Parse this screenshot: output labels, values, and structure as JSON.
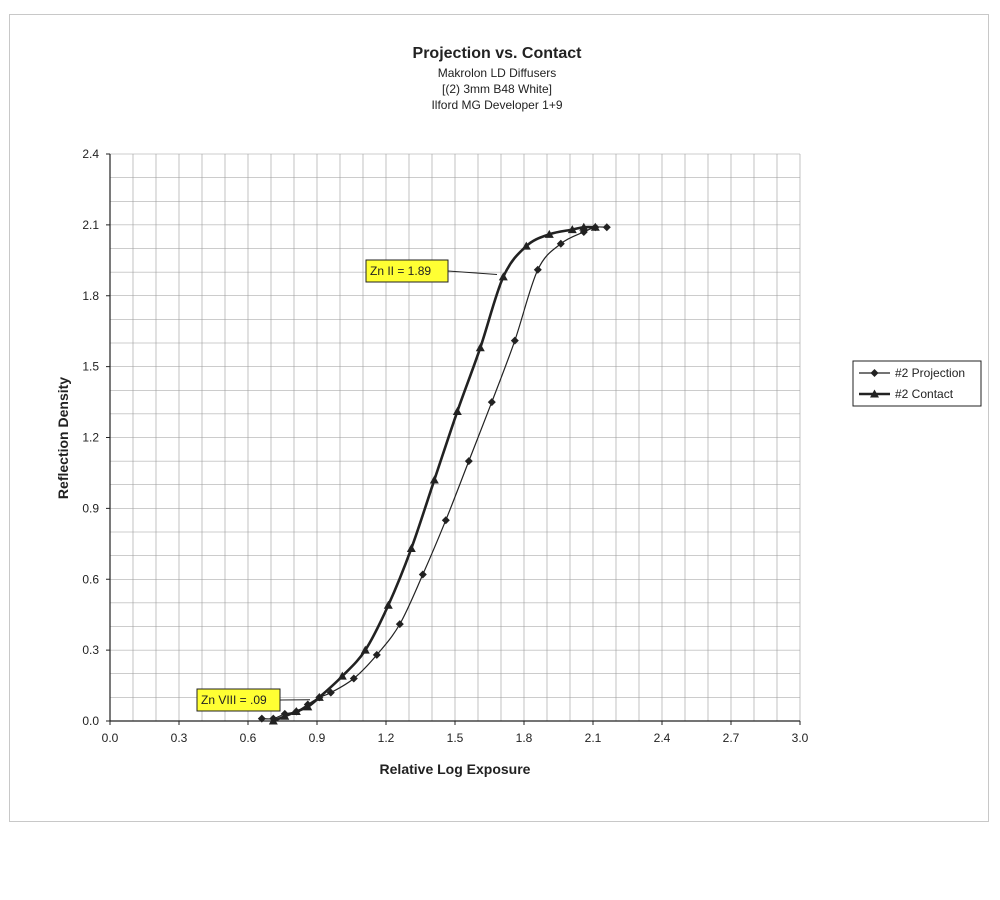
{
  "chart_data": {
    "type": "line",
    "title": "Projection vs. Contact",
    "subtitle_lines": [
      "Makrolon LD Diffusers",
      "[(2) 3mm B48 White]",
      "Ilford MG Developer 1+9"
    ],
    "xlabel": "Relative Log Exposure",
    "ylabel": "Reflection Density",
    "xlim": [
      0,
      3.0
    ],
    "ylim": [
      0,
      2.4
    ],
    "x_ticks": [
      "0.0",
      "0.3",
      "0.6",
      "0.9",
      "1.2",
      "1.5",
      "1.8",
      "2.1",
      "2.4",
      "2.7",
      "3.0"
    ],
    "y_ticks": [
      "0.0",
      "0.3",
      "0.6",
      "0.9",
      "1.2",
      "1.5",
      "1.8",
      "2.1",
      "2.4"
    ],
    "grid": true,
    "legend_position": "right",
    "series": [
      {
        "name": "#2 Projection",
        "marker": "diamond",
        "x": [
          0.66,
          0.71,
          0.76,
          0.81,
          0.86,
          0.91,
          0.96,
          1.06,
          1.16,
          1.26,
          1.36,
          1.46,
          1.56,
          1.66,
          1.76,
          1.86,
          1.96,
          2.06,
          2.11,
          2.16
        ],
        "y": [
          0.01,
          0.01,
          0.03,
          0.04,
          0.07,
          0.1,
          0.12,
          0.18,
          0.28,
          0.41,
          0.62,
          0.85,
          1.1,
          1.35,
          1.61,
          1.91,
          2.02,
          2.07,
          2.09,
          2.09
        ]
      },
      {
        "name": "#2 Contact",
        "marker": "triangle",
        "x": [
          0.71,
          0.76,
          0.81,
          0.86,
          0.91,
          1.01,
          1.11,
          1.21,
          1.31,
          1.41,
          1.51,
          1.61,
          1.71,
          1.81,
          1.91,
          2.01,
          2.06,
          2.11
        ],
        "y": [
          0.0,
          0.02,
          0.04,
          0.06,
          0.1,
          0.19,
          0.3,
          0.49,
          0.73,
          1.02,
          1.31,
          1.58,
          1.88,
          2.01,
          2.06,
          2.08,
          2.09,
          2.09
        ]
      }
    ],
    "annotations": [
      {
        "text": "Zn II = 1.89",
        "x": 1.71,
        "y": 1.89
      },
      {
        "text": "Zn VIII = .09",
        "x": 0.86,
        "y": 0.09
      }
    ],
    "annotation_color": "#ffff33"
  }
}
